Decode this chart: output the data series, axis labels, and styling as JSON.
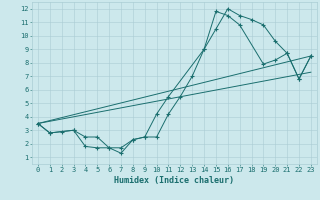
{
  "xlabel": "Humidex (Indice chaleur)",
  "bg_color": "#cce8ec",
  "grid_color": "#aacdd4",
  "line_color": "#1a6e6e",
  "xlim": [
    -0.5,
    23.5
  ],
  "ylim": [
    0.5,
    12.5
  ],
  "xtick_labels": [
    "0",
    "1",
    "2",
    "3",
    "4",
    "5",
    "6",
    "7",
    "8",
    "9",
    "10",
    "11",
    "12",
    "13",
    "14",
    "15",
    "16",
    "17",
    "18",
    "19",
    "20",
    "21",
    "22",
    "23"
  ],
  "xticks": [
    0,
    1,
    2,
    3,
    4,
    5,
    6,
    7,
    8,
    9,
    10,
    11,
    12,
    13,
    14,
    15,
    16,
    17,
    18,
    19,
    20,
    21,
    22,
    23
  ],
  "yticks": [
    1,
    2,
    3,
    4,
    5,
    6,
    7,
    8,
    9,
    10,
    11,
    12
  ],
  "line1_x": [
    0,
    1,
    2,
    3,
    4,
    5,
    6,
    7,
    8,
    9,
    10,
    11,
    12,
    13,
    14,
    15,
    16,
    17,
    18,
    19,
    20,
    21,
    22,
    23
  ],
  "line1_y": [
    3.5,
    2.8,
    2.9,
    3.0,
    1.8,
    1.7,
    1.7,
    1.3,
    2.3,
    2.5,
    2.5,
    4.2,
    5.5,
    7.0,
    9.0,
    10.5,
    12.0,
    11.5,
    11.2,
    10.8,
    9.6,
    8.7,
    6.8,
    8.5
  ],
  "line2_x": [
    0,
    1,
    3,
    4,
    5,
    6,
    7,
    8,
    9,
    10,
    11,
    14,
    15,
    16,
    17,
    19,
    20,
    21,
    22,
    23
  ],
  "line2_y": [
    3.5,
    2.8,
    3.0,
    2.5,
    2.5,
    1.7,
    1.7,
    2.3,
    2.5,
    4.2,
    5.5,
    9.0,
    11.8,
    11.5,
    10.8,
    7.9,
    8.2,
    8.7,
    6.8,
    8.5
  ],
  "line3_x": [
    0,
    23
  ],
  "line3_y": [
    3.5,
    8.5
  ],
  "line4_x": [
    0,
    23
  ],
  "line4_y": [
    3.5,
    7.3
  ]
}
